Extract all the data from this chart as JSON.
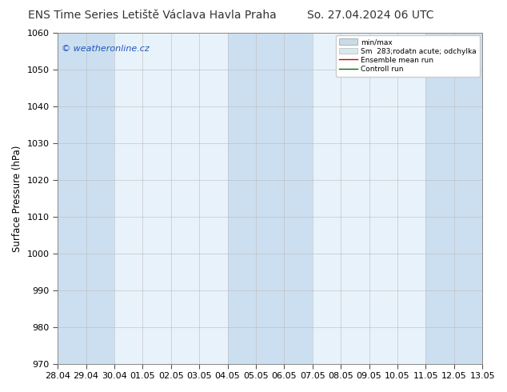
{
  "title_left": "ENS Time Series Letiště Václava Havla Praha",
  "title_right": "So. 27.04.2024 06 UTC",
  "ylabel": "Surface Pressure (hPa)",
  "ylim": [
    970,
    1060
  ],
  "yticks": [
    970,
    980,
    990,
    1000,
    1010,
    1020,
    1030,
    1040,
    1050,
    1060
  ],
  "xtick_labels": [
    "28.04",
    "29.04",
    "30.04",
    "01.05",
    "02.05",
    "03.05",
    "04.05",
    "05.05",
    "06.05",
    "07.05",
    "08.05",
    "09.05",
    "10.05",
    "11.05",
    "12.05",
    "13.05"
  ],
  "num_xticks": 16,
  "legend_entries": [
    "min/max",
    "Sm  283;rodatn acute; odchylka",
    "Ensemble mean run",
    "Controll run"
  ],
  "watermark": "© weatheronline.cz",
  "background_color": "#ffffff",
  "band_color_dark": "#ccdff0",
  "band_color_light": "#e8f2fb",
  "highlighted_bands": [
    0,
    3,
    8,
    13,
    14
  ],
  "title_fontsize": 10,
  "axis_fontsize": 8.5,
  "tick_fontsize": 8
}
